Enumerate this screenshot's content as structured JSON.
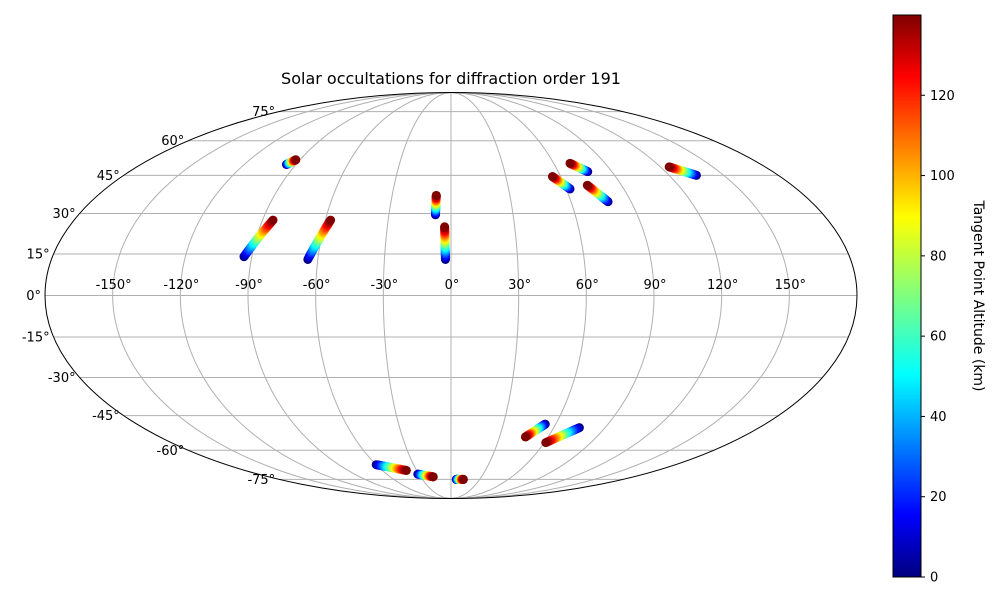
{
  "chart_data": {
    "type": "scatter",
    "projection": "mollweide",
    "title": "Solar occultations for diffraction order 191",
    "lon_ticks": [
      -150,
      -120,
      -90,
      -60,
      -30,
      0,
      30,
      60,
      90,
      120,
      150
    ],
    "lon_tick_labels": [
      "-150°",
      "-120°",
      "-90°",
      "-60°",
      "-30°",
      "0°",
      "30°",
      "60°",
      "90°",
      "120°",
      "150°"
    ],
    "lat_ticks": [
      75,
      60,
      45,
      30,
      15,
      0,
      -15,
      -30,
      -45,
      -60,
      -75
    ],
    "lat_tick_labels": [
      "75°",
      "60°",
      "45°",
      "30°",
      "15°",
      "0°",
      "-15°",
      "-30°",
      "-45°",
      "-60°",
      "-75°"
    ],
    "grid": true,
    "colormap": "jet",
    "colorbar": {
      "label": "Tangent Point Altitude (km)",
      "range": [
        0,
        140
      ],
      "ticks": [
        0,
        20,
        40,
        60,
        80,
        100,
        120
      ],
      "tick_labels": [
        "0",
        "20",
        "40",
        "60",
        "80",
        "100",
        "120"
      ]
    },
    "series": [
      {
        "points": [
          [
            -95.5,
            49.5,
            0
          ],
          [
            -92.5,
            51.5,
            140
          ]
        ]
      },
      {
        "points": [
          [
            -93.5,
            14.0,
            0
          ],
          [
            -85.0,
            27.5,
            140
          ]
        ]
      },
      {
        "points": [
          [
            -64.5,
            13.0,
            0
          ],
          [
            -57.5,
            27.5,
            140
          ]
        ]
      },
      {
        "points": [
          [
            -7.5,
            29.5,
            0
          ],
          [
            -7.5,
            37.0,
            140
          ]
        ]
      },
      {
        "points": [
          [
            -2.5,
            13.0,
            0
          ],
          [
            -3.0,
            25.0,
            140
          ]
        ]
      },
      {
        "points": [
          [
            62.0,
            39.5,
            0
          ],
          [
            55.5,
            44.5,
            140
          ]
        ]
      },
      {
        "points": [
          [
            76.5,
            46.5,
            0
          ],
          [
            69.5,
            50.0,
            140
          ]
        ]
      },
      {
        "points": [
          [
            78.5,
            34.5,
            0
          ],
          [
            72.0,
            41.0,
            140
          ]
        ]
      },
      {
        "points": [
          [
            135.0,
            45.0,
            0
          ],
          [
            125.0,
            48.5,
            140
          ]
        ]
      },
      {
        "points": [
          [
            -60.0,
            -67.0,
            0
          ],
          [
            -39.0,
            -70.0,
            140
          ]
        ]
      },
      {
        "points": [
          [
            -31.0,
            -72.0,
            0
          ],
          [
            -17.5,
            -73.5,
            140
          ]
        ]
      },
      {
        "points": [
          [
            5.5,
            -75.0,
            0
          ],
          [
            13.0,
            -75.0,
            140
          ]
        ]
      },
      {
        "points": [
          [
            54.0,
            -48.5,
            0
          ],
          [
            46.0,
            -54.0,
            140
          ]
        ]
      },
      {
        "points": [
          [
            75.0,
            -50.0,
            0
          ],
          [
            61.0,
            -56.5,
            140
          ]
        ]
      }
    ]
  }
}
